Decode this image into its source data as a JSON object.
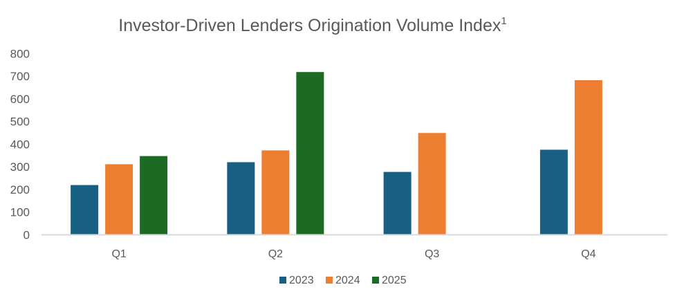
{
  "chart_data": {
    "type": "bar",
    "title": "Investor-Driven Lenders Origination Volume Index",
    "title_superscript": "1",
    "categories": [
      "Q1",
      "Q2",
      "Q3",
      "Q4"
    ],
    "series": [
      {
        "name": "2023",
        "color": "#175f83",
        "values": [
          219,
          320,
          277,
          375
        ]
      },
      {
        "name": "2024",
        "color": "#ed7d31",
        "values": [
          311,
          372,
          449,
          682
        ]
      },
      {
        "name": "2025",
        "color": "#1b6b24",
        "values": [
          347,
          718,
          null,
          null
        ]
      }
    ],
    "yticks": [
      0,
      100,
      200,
      300,
      400,
      500,
      600,
      700,
      800
    ],
    "ylim": [
      0,
      800
    ],
    "grid": false,
    "legend": "bottom"
  }
}
